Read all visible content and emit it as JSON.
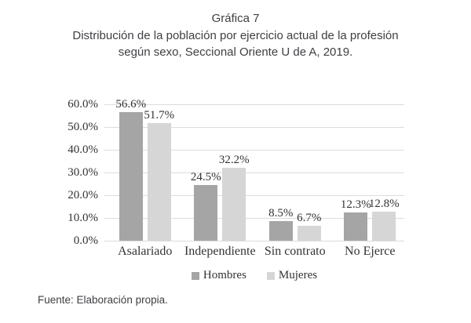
{
  "title": {
    "line1": "Gráfica 7",
    "line2": "Distribución de la población por ejercicio actual de la profesión",
    "line3": "según sexo, Seccional Oriente U de A, 2019."
  },
  "source_note": "Fuente: Elaboración propia.",
  "colors": {
    "hombres_bar": "#a5a5a5",
    "mujeres_bar": "#d6d6d6",
    "gridline": "#dcdcdc",
    "title_text": "#3f4043",
    "label_text": "#333333"
  },
  "chart_data": {
    "type": "bar",
    "title": "Gráfica 7 — Distribución de la población por ejercicio actual de la profesión según sexo, Seccional Oriente U de A, 2019.",
    "categories": [
      "Asalariado",
      "Independiente",
      "Sin contrato",
      "No Ejerce"
    ],
    "series": [
      {
        "name": "Hombres",
        "values": [
          56.6,
          24.5,
          8.5,
          12.3
        ],
        "labels": [
          "56.6%",
          "24.5%",
          "8.5%",
          "12.3%"
        ],
        "color_key": "hombres_bar"
      },
      {
        "name": "Mujeres",
        "values": [
          51.7,
          32.2,
          6.7,
          12.8
        ],
        "labels": [
          "51.7%",
          "32.2%",
          "6.7%",
          "12.8%"
        ],
        "color_key": "mujeres_bar"
      }
    ],
    "y_ticks": [
      "60.0%",
      "50.0%",
      "40.0%",
      "30.0%",
      "20.0%",
      "10.0%",
      "0.0%"
    ],
    "ylim": [
      0,
      60
    ],
    "grid": true,
    "legend_position": "bottom",
    "xlabel": "",
    "ylabel": ""
  }
}
